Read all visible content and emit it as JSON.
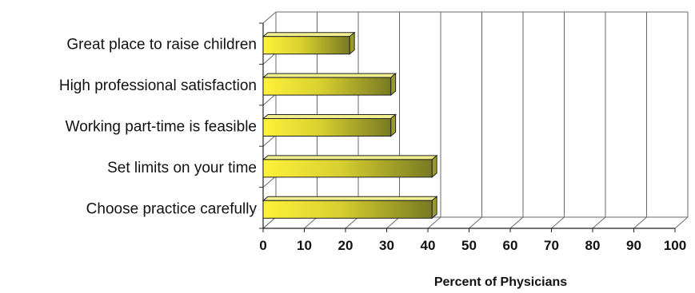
{
  "chart_data": {
    "type": "bar",
    "orientation": "horizontal",
    "style": "3d",
    "categories": [
      "Great place to raise children",
      "High professional satisfaction",
      "Working part-time is feasible",
      "Set limits on your time",
      "Choose practice carefully"
    ],
    "values": [
      21,
      31,
      31,
      41,
      41
    ],
    "title": "",
    "xlabel": "Percent of Physicians",
    "ylabel": "",
    "xlim": [
      0,
      100
    ],
    "xticks": [
      "0",
      "10",
      "20",
      "30",
      "40",
      "50",
      "60",
      "70",
      "80",
      "90",
      "100"
    ],
    "grid": true,
    "legend": "none",
    "colors": {
      "bar_light": "#fff23a",
      "bar_mid": "#d8d030",
      "bar_dark": "#777a22",
      "bar_top": "#f2ef90",
      "bar_end": "#9a9a28",
      "grid": "#6a6a6a"
    }
  }
}
